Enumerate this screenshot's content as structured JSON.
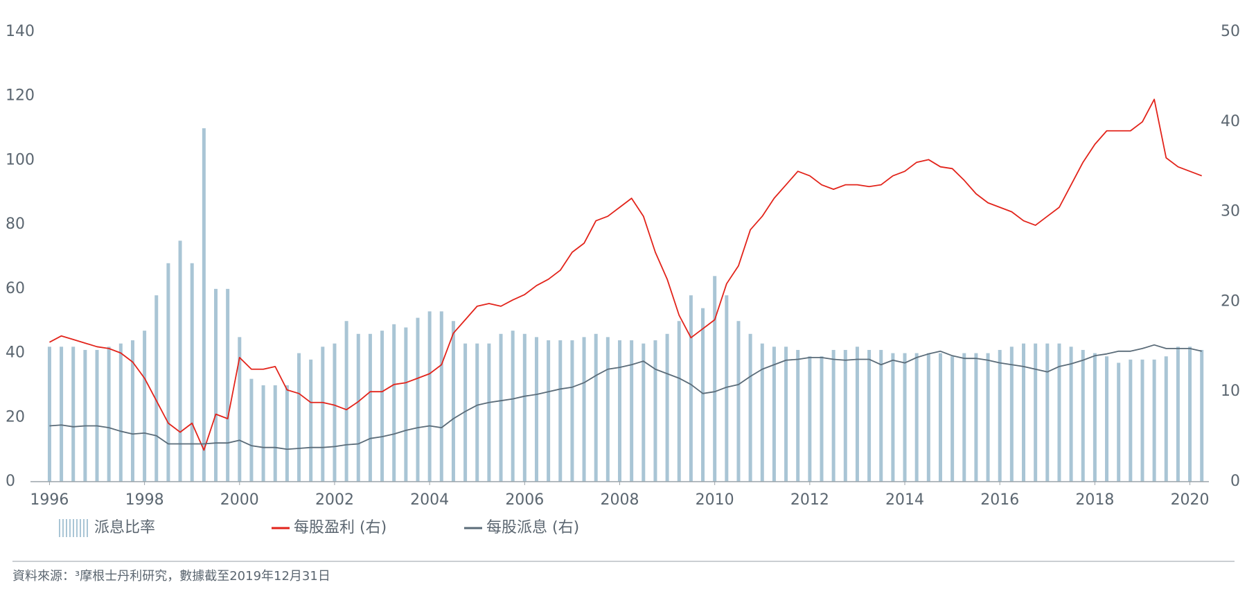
{
  "chart_data": {
    "type": "bar",
    "x": [
      1996,
      1996.25,
      1996.5,
      1996.75,
      1997,
      1997.25,
      1997.5,
      1997.75,
      1998,
      1998.25,
      1998.5,
      1998.75,
      1999,
      1999.25,
      1999.5,
      1999.75,
      2000,
      2000.25,
      2000.5,
      2000.75,
      2001,
      2001.25,
      2001.5,
      2001.75,
      2002,
      2002.25,
      2002.5,
      2002.75,
      2003,
      2003.25,
      2003.5,
      2003.75,
      2004,
      2004.25,
      2004.5,
      2004.75,
      2005,
      2005.25,
      2005.5,
      2005.75,
      2006,
      2006.25,
      2006.5,
      2006.75,
      2007,
      2007.25,
      2007.5,
      2007.75,
      2008,
      2008.25,
      2008.5,
      2008.75,
      2009,
      2009.25,
      2009.5,
      2009.75,
      2010,
      2010.25,
      2010.5,
      2010.75,
      2011,
      2011.25,
      2011.5,
      2011.75,
      2012,
      2012.25,
      2012.5,
      2012.75,
      2013,
      2013.25,
      2013.5,
      2013.75,
      2014,
      2014.25,
      2014.5,
      2014.75,
      2015,
      2015.25,
      2015.5,
      2015.75,
      2016,
      2016.25,
      2016.5,
      2016.75,
      2017,
      2017.25,
      2017.5,
      2017.75,
      2018,
      2018.25,
      2018.5,
      2018.75,
      2019,
      2019.25,
      2019.5,
      2019.75,
      2020,
      2020.25
    ],
    "series": [
      {
        "name": "派息比率",
        "type": "bar",
        "color": "#a9c5d5",
        "values": [
          42,
          42,
          42,
          41,
          41,
          42,
          43,
          44,
          47,
          58,
          68,
          75,
          68,
          110,
          60,
          60,
          45,
          32,
          30,
          30,
          30,
          40,
          38,
          42,
          43,
          50,
          46,
          46,
          47,
          49,
          48,
          51,
          53,
          53,
          50,
          43,
          43,
          43,
          46,
          47,
          46,
          45,
          44,
          44,
          44,
          45,
          46,
          45,
          44,
          44,
          43,
          44,
          46,
          50,
          58,
          54,
          64,
          58,
          50,
          46,
          43,
          42,
          42,
          41,
          39,
          39,
          41,
          41,
          42,
          41,
          41,
          40,
          40,
          40,
          40,
          40,
          39,
          40,
          40,
          40,
          41,
          42,
          43,
          43,
          43,
          43,
          42,
          41,
          40,
          39,
          37,
          38,
          38,
          38,
          39,
          42,
          42,
          41
        ]
      },
      {
        "name": "每股盈利 (右)",
        "type": "line",
        "axis": "y2",
        "color": "#e2231a",
        "values": [
          15.5,
          16.2,
          15.8,
          15.4,
          15.0,
          14.8,
          14.3,
          13.3,
          11.5,
          9.0,
          6.5,
          5.5,
          6.5,
          3.5,
          7.5,
          7.0,
          13.8,
          12.5,
          12.5,
          12.8,
          10.2,
          9.8,
          8.8,
          8.8,
          8.5,
          8.0,
          8.9,
          10.0,
          10.0,
          10.8,
          11.0,
          11.5,
          12.0,
          13.0,
          16.5,
          18.0,
          19.5,
          19.8,
          19.5,
          20.2,
          20.8,
          21.8,
          22.5,
          23.5,
          25.5,
          26.5,
          29.0,
          29.5,
          30.5,
          31.5,
          29.5,
          25.5,
          22.5,
          18.5,
          16.0,
          17.0,
          18.0,
          22.0,
          24.0,
          28.0,
          29.5,
          31.5,
          33.0,
          34.5,
          34.0,
          33.0,
          32.5,
          33.0,
          33.0,
          32.8,
          33.0,
          34.0,
          34.5,
          35.5,
          35.8,
          35.0,
          34.8,
          33.5,
          32.0,
          31.0,
          30.5,
          30.0,
          29.0,
          28.5,
          29.5,
          30.5,
          33.0,
          35.5,
          37.5,
          39.0,
          39.0,
          39.0,
          40.0,
          42.5,
          36.0,
          35.0,
          34.5,
          34.0
        ]
      },
      {
        "name": "每股派息 (右)",
        "type": "line",
        "axis": "y2",
        "color": "#5a6b78",
        "values": [
          6.2,
          6.3,
          6.1,
          6.2,
          6.2,
          6.0,
          5.6,
          5.3,
          5.4,
          5.1,
          4.2,
          4.2,
          4.2,
          4.2,
          4.3,
          4.3,
          4.6,
          4.0,
          3.8,
          3.8,
          3.6,
          3.7,
          3.8,
          3.8,
          3.9,
          4.1,
          4.2,
          4.8,
          5.0,
          5.3,
          5.7,
          6.0,
          6.2,
          6.0,
          7.0,
          7.8,
          8.5,
          8.8,
          9.0,
          9.2,
          9.5,
          9.7,
          10.0,
          10.3,
          10.5,
          11.0,
          11.8,
          12.5,
          12.7,
          13.0,
          13.4,
          12.5,
          12.0,
          11.5,
          10.8,
          9.8,
          10.0,
          10.5,
          10.8,
          11.7,
          12.5,
          13.0,
          13.5,
          13.6,
          13.8,
          13.8,
          13.6,
          13.5,
          13.6,
          13.6,
          13.0,
          13.5,
          13.2,
          13.8,
          14.2,
          14.5,
          14.0,
          13.7,
          13.7,
          13.5,
          13.2,
          13.0,
          12.8,
          12.5,
          12.2,
          12.8,
          13.1,
          13.5,
          14.0,
          14.2,
          14.5,
          14.5,
          14.8,
          15.2,
          14.8,
          14.8,
          14.8,
          14.5
        ]
      }
    ],
    "xlim": [
      1995.6,
      2020.4
    ],
    "xticks": [
      1996,
      1998,
      2000,
      2002,
      2004,
      2006,
      2008,
      2010,
      2012,
      2014,
      2016,
      2018,
      2020
    ],
    "ylim": [
      0,
      140
    ],
    "yticks": [
      0,
      20,
      40,
      60,
      80,
      100,
      120,
      140
    ],
    "y2lim": [
      0,
      50
    ],
    "y2ticks": [
      0,
      10,
      20,
      30,
      40,
      50
    ],
    "grid": false,
    "legend": "bottom",
    "source": "資料來源：³摩根士丹利研究，數據截至2019年12月31日"
  }
}
